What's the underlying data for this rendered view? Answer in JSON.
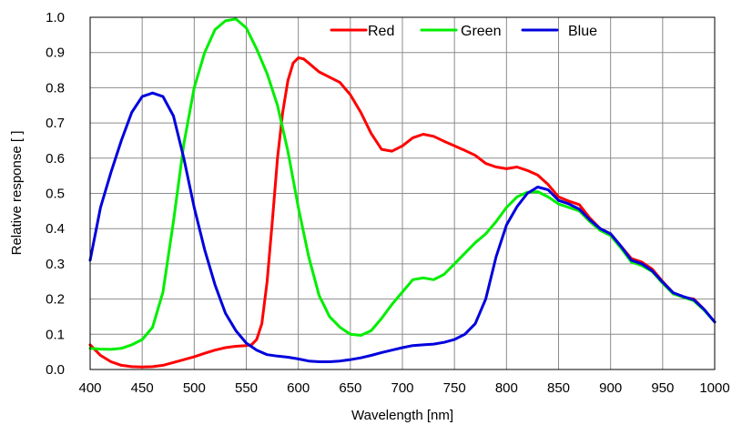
{
  "chart_data": {
    "type": "line",
    "title": "",
    "xlabel": "Wavelength [nm]",
    "ylabel": "Relative response [ ]",
    "xlim": [
      400,
      1000
    ],
    "ylim": [
      0,
      1.0
    ],
    "x_ticks": [
      "400",
      "450",
      "500",
      "550",
      "600",
      "650",
      "700",
      "750",
      "800",
      "850",
      "900",
      "950",
      "1000"
    ],
    "y_ticks": [
      "0.0",
      "0.1",
      "0.2",
      "0.3",
      "0.4",
      "0.5",
      "0.6",
      "0.7",
      "0.8",
      "0.9",
      "1.0"
    ],
    "grid": true,
    "legend_position": "top-right",
    "series": [
      {
        "name": "Red",
        "color": "#ff0000",
        "points": [
          [
            400,
            0.07
          ],
          [
            410,
            0.04
          ],
          [
            420,
            0.022
          ],
          [
            430,
            0.012
          ],
          [
            440,
            0.008
          ],
          [
            450,
            0.007
          ],
          [
            460,
            0.008
          ],
          [
            470,
            0.012
          ],
          [
            480,
            0.02
          ],
          [
            490,
            0.028
          ],
          [
            500,
            0.036
          ],
          [
            510,
            0.046
          ],
          [
            520,
            0.055
          ],
          [
            530,
            0.062
          ],
          [
            540,
            0.066
          ],
          [
            550,
            0.068
          ],
          [
            555,
            0.07
          ],
          [
            560,
            0.085
          ],
          [
            565,
            0.13
          ],
          [
            570,
            0.25
          ],
          [
            575,
            0.42
          ],
          [
            580,
            0.6
          ],
          [
            585,
            0.73
          ],
          [
            590,
            0.82
          ],
          [
            595,
            0.87
          ],
          [
            600,
            0.885
          ],
          [
            605,
            0.882
          ],
          [
            610,
            0.87
          ],
          [
            620,
            0.845
          ],
          [
            630,
            0.83
          ],
          [
            640,
            0.815
          ],
          [
            650,
            0.78
          ],
          [
            660,
            0.73
          ],
          [
            670,
            0.67
          ],
          [
            680,
            0.625
          ],
          [
            690,
            0.62
          ],
          [
            700,
            0.635
          ],
          [
            710,
            0.658
          ],
          [
            720,
            0.668
          ],
          [
            730,
            0.662
          ],
          [
            740,
            0.648
          ],
          [
            750,
            0.635
          ],
          [
            760,
            0.622
          ],
          [
            770,
            0.608
          ],
          [
            780,
            0.585
          ],
          [
            790,
            0.575
          ],
          [
            800,
            0.57
          ],
          [
            810,
            0.575
          ],
          [
            820,
            0.565
          ],
          [
            830,
            0.552
          ],
          [
            840,
            0.525
          ],
          [
            850,
            0.49
          ],
          [
            860,
            0.478
          ],
          [
            870,
            0.468
          ],
          [
            880,
            0.43
          ],
          [
            890,
            0.4
          ],
          [
            900,
            0.385
          ],
          [
            910,
            0.35
          ],
          [
            920,
            0.315
          ],
          [
            930,
            0.305
          ],
          [
            940,
            0.285
          ],
          [
            950,
            0.25
          ],
          [
            960,
            0.218
          ],
          [
            970,
            0.205
          ],
          [
            980,
            0.2
          ],
          [
            990,
            0.17
          ],
          [
            1000,
            0.135
          ]
        ]
      },
      {
        "name": "Green",
        "color": "#00ee00",
        "points": [
          [
            400,
            0.06
          ],
          [
            410,
            0.058
          ],
          [
            420,
            0.057
          ],
          [
            430,
            0.06
          ],
          [
            440,
            0.07
          ],
          [
            450,
            0.085
          ],
          [
            460,
            0.12
          ],
          [
            470,
            0.22
          ],
          [
            480,
            0.42
          ],
          [
            490,
            0.64
          ],
          [
            500,
            0.8
          ],
          [
            510,
            0.9
          ],
          [
            520,
            0.965
          ],
          [
            530,
            0.99
          ],
          [
            540,
            0.995
          ],
          [
            550,
            0.97
          ],
          [
            560,
            0.91
          ],
          [
            570,
            0.84
          ],
          [
            580,
            0.75
          ],
          [
            590,
            0.62
          ],
          [
            600,
            0.46
          ],
          [
            610,
            0.32
          ],
          [
            620,
            0.21
          ],
          [
            630,
            0.15
          ],
          [
            640,
            0.12
          ],
          [
            650,
            0.1
          ],
          [
            660,
            0.097
          ],
          [
            670,
            0.11
          ],
          [
            680,
            0.145
          ],
          [
            690,
            0.185
          ],
          [
            700,
            0.22
          ],
          [
            710,
            0.255
          ],
          [
            720,
            0.26
          ],
          [
            730,
            0.255
          ],
          [
            740,
            0.27
          ],
          [
            750,
            0.3
          ],
          [
            760,
            0.33
          ],
          [
            770,
            0.36
          ],
          [
            780,
            0.385
          ],
          [
            790,
            0.42
          ],
          [
            800,
            0.46
          ],
          [
            810,
            0.49
          ],
          [
            820,
            0.503
          ],
          [
            830,
            0.505
          ],
          [
            840,
            0.49
          ],
          [
            850,
            0.47
          ],
          [
            860,
            0.46
          ],
          [
            870,
            0.45
          ],
          [
            880,
            0.42
          ],
          [
            890,
            0.395
          ],
          [
            900,
            0.38
          ],
          [
            910,
            0.345
          ],
          [
            920,
            0.305
          ],
          [
            930,
            0.295
          ],
          [
            940,
            0.278
          ],
          [
            950,
            0.245
          ],
          [
            960,
            0.215
          ],
          [
            970,
            0.205
          ],
          [
            980,
            0.195
          ],
          [
            990,
            0.168
          ],
          [
            1000,
            0.135
          ]
        ]
      },
      {
        "name": "Blue",
        "color": "#0000dd",
        "points": [
          [
            400,
            0.31
          ],
          [
            410,
            0.46
          ],
          [
            420,
            0.56
          ],
          [
            430,
            0.65
          ],
          [
            440,
            0.73
          ],
          [
            450,
            0.775
          ],
          [
            460,
            0.785
          ],
          [
            470,
            0.775
          ],
          [
            480,
            0.72
          ],
          [
            490,
            0.6
          ],
          [
            500,
            0.46
          ],
          [
            510,
            0.34
          ],
          [
            520,
            0.24
          ],
          [
            530,
            0.16
          ],
          [
            540,
            0.11
          ],
          [
            550,
            0.075
          ],
          [
            560,
            0.055
          ],
          [
            570,
            0.042
          ],
          [
            580,
            0.038
          ],
          [
            590,
            0.035
          ],
          [
            600,
            0.03
          ],
          [
            610,
            0.024
          ],
          [
            620,
            0.022
          ],
          [
            630,
            0.022
          ],
          [
            640,
            0.024
          ],
          [
            650,
            0.028
          ],
          [
            660,
            0.033
          ],
          [
            670,
            0.04
          ],
          [
            680,
            0.048
          ],
          [
            690,
            0.055
          ],
          [
            700,
            0.062
          ],
          [
            710,
            0.068
          ],
          [
            720,
            0.07
          ],
          [
            730,
            0.072
          ],
          [
            740,
            0.077
          ],
          [
            750,
            0.085
          ],
          [
            760,
            0.1
          ],
          [
            770,
            0.13
          ],
          [
            780,
            0.2
          ],
          [
            790,
            0.32
          ],
          [
            800,
            0.41
          ],
          [
            810,
            0.462
          ],
          [
            820,
            0.5
          ],
          [
            830,
            0.518
          ],
          [
            840,
            0.51
          ],
          [
            850,
            0.48
          ],
          [
            860,
            0.47
          ],
          [
            870,
            0.455
          ],
          [
            880,
            0.425
          ],
          [
            890,
            0.4
          ],
          [
            900,
            0.385
          ],
          [
            910,
            0.35
          ],
          [
            920,
            0.31
          ],
          [
            930,
            0.3
          ],
          [
            940,
            0.28
          ],
          [
            950,
            0.248
          ],
          [
            960,
            0.218
          ],
          [
            970,
            0.207
          ],
          [
            980,
            0.198
          ],
          [
            990,
            0.17
          ],
          [
            1000,
            0.135
          ]
        ]
      }
    ]
  }
}
